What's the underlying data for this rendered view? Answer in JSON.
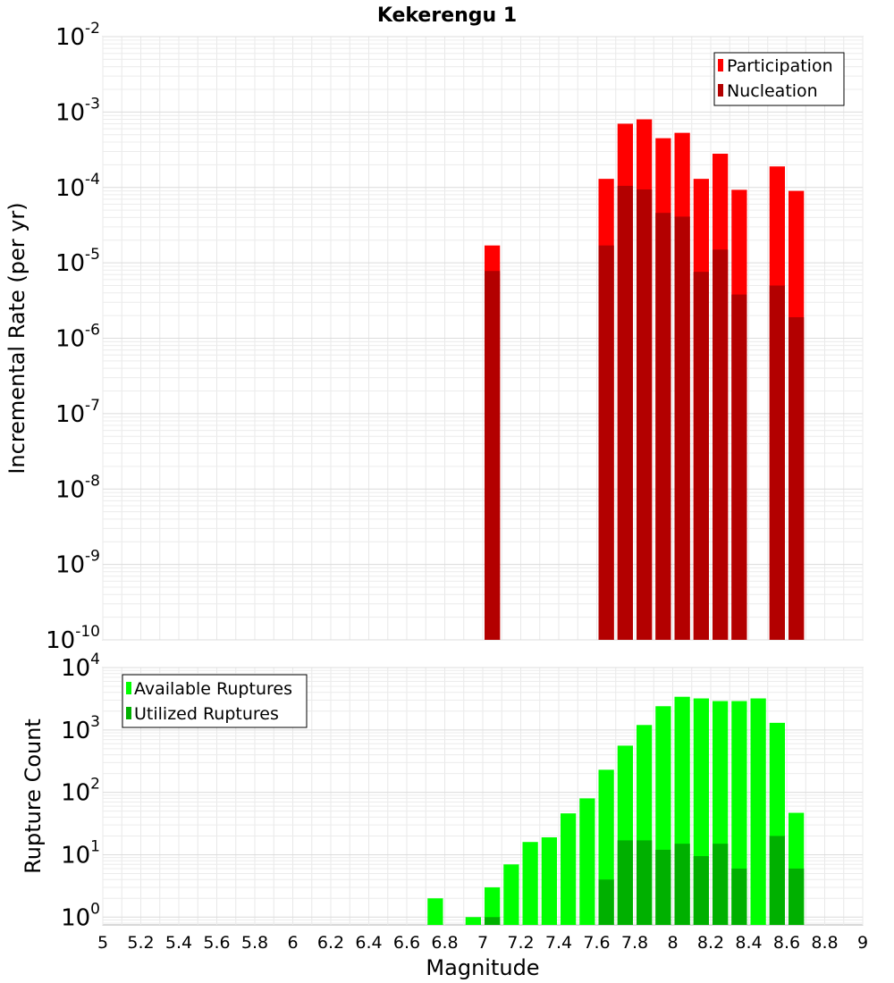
{
  "chart_data": [
    {
      "type": "bar",
      "title": "Kekerengu 1",
      "xlabel": "",
      "ylabel": "Incremental Rate (per yr)",
      "xlim": [
        5,
        9
      ],
      "ylim": [
        1e-10,
        0.01
      ],
      "yscale": "log",
      "grid": true,
      "legend_position": "top-right",
      "y_ticks": [
        {
          "base": "10",
          "exp": "-10"
        },
        {
          "base": "10",
          "exp": "-9"
        },
        {
          "base": "10",
          "exp": "-8"
        },
        {
          "base": "10",
          "exp": "-7"
        },
        {
          "base": "10",
          "exp": "-6"
        },
        {
          "base": "10",
          "exp": "-5"
        },
        {
          "base": "10",
          "exp": "-4"
        },
        {
          "base": "10",
          "exp": "-3"
        },
        {
          "base": "10",
          "exp": "-2"
        }
      ],
      "x": [
        7.05,
        7.65,
        7.75,
        7.85,
        7.95,
        8.05,
        8.15,
        8.25,
        8.35,
        8.55,
        8.65
      ],
      "series": [
        {
          "name": "Participation",
          "color": "#ff0000",
          "values": [
            1.7e-05,
            0.00013,
            0.0007,
            0.0008,
            0.00045,
            0.00053,
            0.00013,
            0.00028,
            9.3e-05,
            0.00019,
            9e-05
          ]
        },
        {
          "name": "Nucleation",
          "color": "#b30000",
          "values": [
            7.8e-06,
            1.7e-05,
            0.000105,
            9.4e-05,
            4.6e-05,
            4.1e-05,
            7.6e-06,
            1.5e-05,
            3.8e-06,
            5e-06,
            1.9e-06
          ]
        }
      ]
    },
    {
      "type": "bar",
      "title": "",
      "xlabel": "Magnitude",
      "ylabel": "Rupture Count",
      "xlim": [
        5,
        9
      ],
      "ylim": [
        0.75,
        10000
      ],
      "yscale": "log",
      "grid": true,
      "legend_position": "top-left",
      "y_ticks": [
        {
          "base": "10",
          "exp": "0"
        },
        {
          "base": "10",
          "exp": "1"
        },
        {
          "base": "10",
          "exp": "2"
        },
        {
          "base": "10",
          "exp": "3"
        },
        {
          "base": "10",
          "exp": "4"
        }
      ],
      "x_tick_labels": [
        "5",
        "5.2",
        "5.4",
        "5.6",
        "5.8",
        "6",
        "6.2",
        "6.4",
        "6.6",
        "6.8",
        "7",
        "7.2",
        "7.4",
        "7.6",
        "7.8",
        "8",
        "8.2",
        "8.4",
        "8.6",
        "8.8",
        "9"
      ],
      "x": [
        6.75,
        6.95,
        7.05,
        7.15,
        7.25,
        7.35,
        7.45,
        7.55,
        7.65,
        7.75,
        7.85,
        7.95,
        8.05,
        8.15,
        8.25,
        8.35,
        8.45,
        8.55,
        8.65
      ],
      "series": [
        {
          "name": "Available Ruptures",
          "color": "#00ff00",
          "values": [
            2,
            1,
            3,
            7,
            16,
            19,
            46,
            80,
            230,
            560,
            1200,
            2400,
            3400,
            3200,
            2900,
            2900,
            3200,
            1300,
            47
          ]
        },
        {
          "name": "Utilized Ruptures",
          "color": "#00b000",
          "values": [
            0,
            0,
            1,
            0,
            0,
            0,
            0,
            0,
            4,
            17,
            17,
            12,
            15,
            9.5,
            15,
            6,
            0,
            20,
            6
          ]
        }
      ]
    }
  ]
}
